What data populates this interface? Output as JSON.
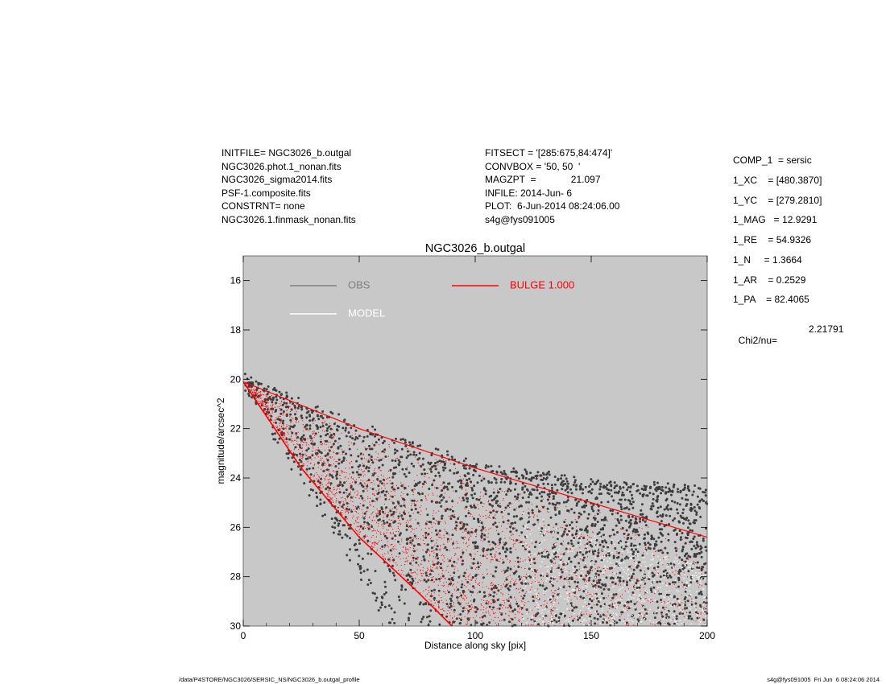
{
  "header_left": [
    "INITFILE= NGC3026_b.outgal",
    "NGC3026.phot.1_nonan.fits",
    "NGC3026_sigma2014.fits",
    "PSF-1.composite.fits",
    "CONSTRNT= none",
    "NGC3026.1.finmask_nonan.fits"
  ],
  "header_mid": [
    "FITSECT = '[285:675,84:474]'",
    "CONVBOX = '50, 50  '",
    "MAGZPT  =             21.097",
    "INFILE: 2014-Jun- 6",
    "PLOT:  6-Jun-2014 08:24:06.00",
    "s4g@fys091005"
  ],
  "params": [
    "COMP_1  = sersic",
    "1_XC    = [480.3870]",
    "1_YC    = [279.2810]",
    "1_MAG   = 12.9291",
    "1_RE    = 54.9326",
    "1_N     = 1.3664",
    "1_AR    = 0.2529",
    "1_PA    = 82.4065"
  ],
  "chi": {
    "label": "Chi2/nu=",
    "value": "2.21791"
  },
  "footer_left": "/data/P4STORE/NGC3026/SERSIC_NS/NGC3026_b.outgal_profile",
  "footer_right": "s4g@fys091005  Fri Jun  6 08:24:06 2014",
  "colors": {
    "plot_bg": "#c8c8c8",
    "obs": "#3c3c3c",
    "model": "#f0f0f0",
    "bulge": "#ff0000",
    "obs_legend": "#808080"
  },
  "chart_data": {
    "type": "scatter",
    "title": "NGC3026_b.outgal",
    "xlabel": "Distance along sky [pix]",
    "ylabel": "magnitude/arcsec^2",
    "xlim": [
      0,
      200
    ],
    "ylim": [
      30,
      15
    ],
    "y_inverted": true,
    "xticks": [
      0,
      50,
      100,
      150,
      200
    ],
    "yticks": [
      16,
      18,
      20,
      22,
      24,
      26,
      28,
      30
    ],
    "grid": false,
    "legend": [
      {
        "name": "OBS",
        "color": "#808080"
      },
      {
        "name": "MODEL",
        "color": "#ffffff"
      },
      {
        "name": "BULGE  1.000",
        "color": "#ff0000"
      }
    ],
    "series": [
      {
        "name": "OBS",
        "description": "observed pixel surface brightness vs distance",
        "upper_envelope": [
          [
            0,
            19.9
          ],
          [
            25,
            20.9
          ],
          [
            50,
            21.9
          ],
          [
            100,
            23.4
          ],
          [
            150,
            24.2
          ],
          [
            200,
            24.4
          ]
        ],
        "lower_envelope": [
          [
            0,
            20.3
          ],
          [
            25,
            24.3
          ],
          [
            50,
            28.0
          ],
          [
            60,
            30.0
          ]
        ]
      },
      {
        "name": "BULGE  1.000",
        "description": "Sersic bulge model pixels, fan bounded by major and minor axis profiles",
        "major_axis": [
          [
            0,
            20.1
          ],
          [
            50,
            22.0
          ],
          [
            100,
            23.6
          ],
          [
            150,
            25.0
          ],
          [
            200,
            26.4
          ]
        ],
        "minor_axis": [
          [
            0,
            20.1
          ],
          [
            25,
            23.6
          ],
          [
            50,
            26.4
          ],
          [
            75,
            28.6
          ],
          [
            90,
            30.0
          ]
        ]
      }
    ]
  }
}
